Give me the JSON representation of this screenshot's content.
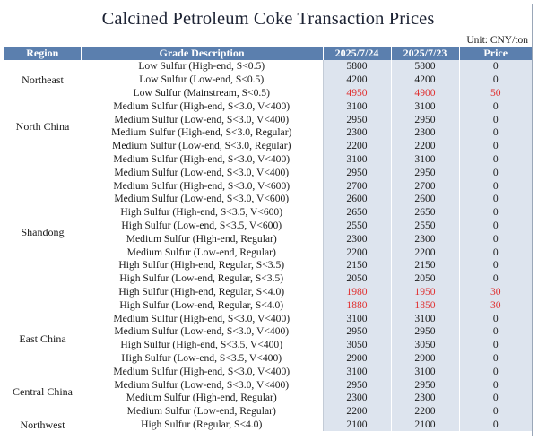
{
  "title": "Calcined Petroleum Coke Transaction Prices",
  "unit": "Unit: CNY/ton",
  "headers": {
    "region": "Region",
    "grade": "Grade Description",
    "date1": "2025/7/24",
    "date2": "2025/7/23",
    "change": "Price"
  },
  "highlight_color": "#e03030",
  "header_color": "#5b7fae",
  "regions": [
    {
      "name": "Northeast",
      "rows": [
        {
          "grade": "Low Sulfur (High-end, S<0.5)",
          "p1": "5800",
          "p2": "5800",
          "chg": "0"
        },
        {
          "grade": "Low Sulfur (Low-end, S<0.5)",
          "p1": "4200",
          "p2": "4200",
          "chg": "0"
        },
        {
          "grade": "Low Sulfur (Mainstream, S<0.5)",
          "p1": "4950",
          "p2": "4900",
          "chg": "50",
          "hl": true
        }
      ]
    },
    {
      "name": "North China",
      "rows": [
        {
          "grade": "Medium Sulfur (High-end, S<3.0, V<400)",
          "p1": "3100",
          "p2": "3100",
          "chg": "0"
        },
        {
          "grade": "Medium Sulfur (Low-end, S<3.0, V<400)",
          "p1": "2950",
          "p2": "2950",
          "chg": "0"
        },
        {
          "grade": "Medium Sulfur (High-end, S<3.0, Regular)",
          "p1": "2300",
          "p2": "2300",
          "chg": "0"
        },
        {
          "grade": "Medium Sulfur (Low-end, S<3.0, Regular)",
          "p1": "2200",
          "p2": "2200",
          "chg": "0"
        }
      ]
    },
    {
      "name": "Shandong",
      "rows": [
        {
          "grade": "Medium Sulfur (High-end, S<3.0, V<400)",
          "p1": "3100",
          "p2": "3100",
          "chg": "0"
        },
        {
          "grade": "Medium Sulfur (Low-end, S<3.0, V<400)",
          "p1": "2950",
          "p2": "2950",
          "chg": "0"
        },
        {
          "grade": "Medium Sulfur (High-end, S<3.0, V<600)",
          "p1": "2700",
          "p2": "2700",
          "chg": "0"
        },
        {
          "grade": "Medium Sulfur (Low-end, S<3.0, V<600)",
          "p1": "2600",
          "p2": "2600",
          "chg": "0"
        },
        {
          "grade": "High Sulfur (High-end, S<3.5, V<600)",
          "p1": "2650",
          "p2": "2650",
          "chg": "0"
        },
        {
          "grade": "High Sulfur (Low-end, S<3.5, V<600)",
          "p1": "2550",
          "p2": "2550",
          "chg": "0"
        },
        {
          "grade": "Medium Sulfur (High-end, Regular)",
          "p1": "2300",
          "p2": "2300",
          "chg": "0"
        },
        {
          "grade": "Medium Sulfur (Low-end, Regular)",
          "p1": "2200",
          "p2": "2200",
          "chg": "0"
        },
        {
          "grade": "High Sulfur (High-end, Regular, S<3.5)",
          "p1": "2150",
          "p2": "2150",
          "chg": "0"
        },
        {
          "grade": "High Sulfur (Low-end, Regular, S<3.5)",
          "p1": "2050",
          "p2": "2050",
          "chg": "0"
        },
        {
          "grade": "High Sulfur (High-end, Regular, S<4.0)",
          "p1": "1980",
          "p2": "1950",
          "chg": "30",
          "hl": true
        },
        {
          "grade": "High Sulfur (Low-end, Regular, S<4.0)",
          "p1": "1880",
          "p2": "1850",
          "chg": "30",
          "hl": true
        }
      ]
    },
    {
      "name": "East China",
      "rows": [
        {
          "grade": "Medium Sulfur (High-end, S<3.0, V<400)",
          "p1": "3100",
          "p2": "3100",
          "chg": "0"
        },
        {
          "grade": "Medium Sulfur (Low-end, S<3.0, V<400)",
          "p1": "2950",
          "p2": "2950",
          "chg": "0"
        },
        {
          "grade": "High Sulfur (High-end, S<3.5, V<400)",
          "p1": "3050",
          "p2": "3050",
          "chg": "0"
        },
        {
          "grade": "High Sulfur (Low-end, S<3.5, V<400)",
          "p1": "2900",
          "p2": "2900",
          "chg": "0"
        }
      ]
    },
    {
      "name": "Central China",
      "rows": [
        {
          "grade": "Medium Sulfur (High-end, S<3.0, V<400)",
          "p1": "3100",
          "p2": "3100",
          "chg": "0"
        },
        {
          "grade": "Medium Sulfur (Low-end, S<3.0, V<400)",
          "p1": "2950",
          "p2": "2950",
          "chg": "0"
        },
        {
          "grade": "Medium Sulfur (High-end, Regular)",
          "p1": "2300",
          "p2": "2300",
          "chg": "0"
        },
        {
          "grade": "Medium Sulfur (Low-end, Regular)",
          "p1": "2200",
          "p2": "2200",
          "chg": "0"
        }
      ]
    },
    {
      "name": "Northwest",
      "rows": [
        {
          "grade": "High Sulfur (Regular, S<4.0)",
          "p1": "2100",
          "p2": "2100",
          "chg": "0"
        }
      ]
    }
  ]
}
